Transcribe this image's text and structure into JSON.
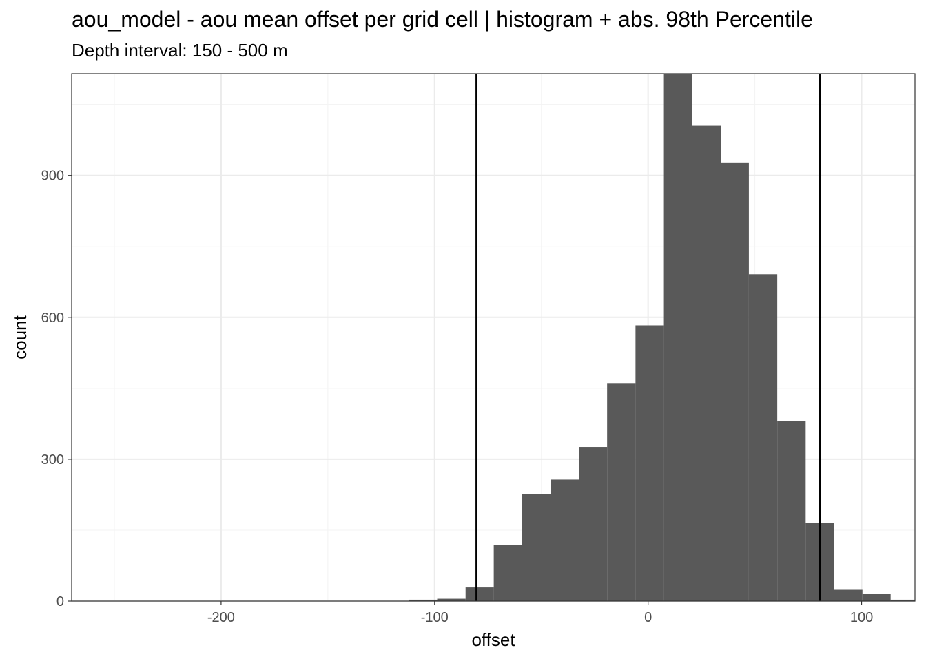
{
  "chart_data": {
    "type": "bar",
    "title": "aou_model  -  aou mean offset per grid cell | histogram + abs. 98th Percentile",
    "subtitle": "Depth interval: 150 - 500 m",
    "xlabel": "offset",
    "ylabel": "count",
    "xlim": [
      -270,
      125
    ],
    "ylim": [
      0,
      1115
    ],
    "xticks": [
      -200,
      -100,
      0,
      100
    ],
    "xtick_labels": [
      "-200",
      "-100",
      "0",
      "100"
    ],
    "yticks": [
      0,
      300,
      600,
      900
    ],
    "ytick_labels": [
      "0",
      "300",
      "600",
      "900"
    ],
    "grid": true,
    "bins": [
      {
        "x0": -112.1,
        "x1": -98.8,
        "count": 3
      },
      {
        "x0": -98.8,
        "x1": -85.5,
        "count": 5
      },
      {
        "x0": -85.5,
        "x1": -72.3,
        "count": 29
      },
      {
        "x0": -72.3,
        "x1": -59.0,
        "count": 118
      },
      {
        "x0": -59.0,
        "x1": -45.7,
        "count": 227
      },
      {
        "x0": -45.7,
        "x1": -32.4,
        "count": 257
      },
      {
        "x0": -32.4,
        "x1": -19.2,
        "count": 326
      },
      {
        "x0": -19.2,
        "x1": -5.9,
        "count": 461
      },
      {
        "x0": -5.9,
        "x1": 7.4,
        "count": 583
      },
      {
        "x0": 7.4,
        "x1": 20.7,
        "count": 1115
      },
      {
        "x0": 20.7,
        "x1": 34.0,
        "count": 1005
      },
      {
        "x0": 34.0,
        "x1": 47.2,
        "count": 926
      },
      {
        "x0": 47.2,
        "x1": 60.5,
        "count": 691
      },
      {
        "x0": 60.5,
        "x1": 73.8,
        "count": 380
      },
      {
        "x0": 73.8,
        "x1": 87.1,
        "count": 165
      },
      {
        "x0": 87.1,
        "x1": 100.4,
        "count": 24
      },
      {
        "x0": 100.4,
        "x1": 113.6,
        "count": 16
      },
      {
        "x0": 113.6,
        "x1": 126.9,
        "count": 3
      }
    ],
    "vlines": [
      -80.5,
      80.5
    ],
    "colors": {
      "bar": "#595959",
      "vline": "#000000",
      "grid_major": "#ebebeb",
      "grid_minor": "#f3f3f3",
      "border": "#333333"
    }
  }
}
